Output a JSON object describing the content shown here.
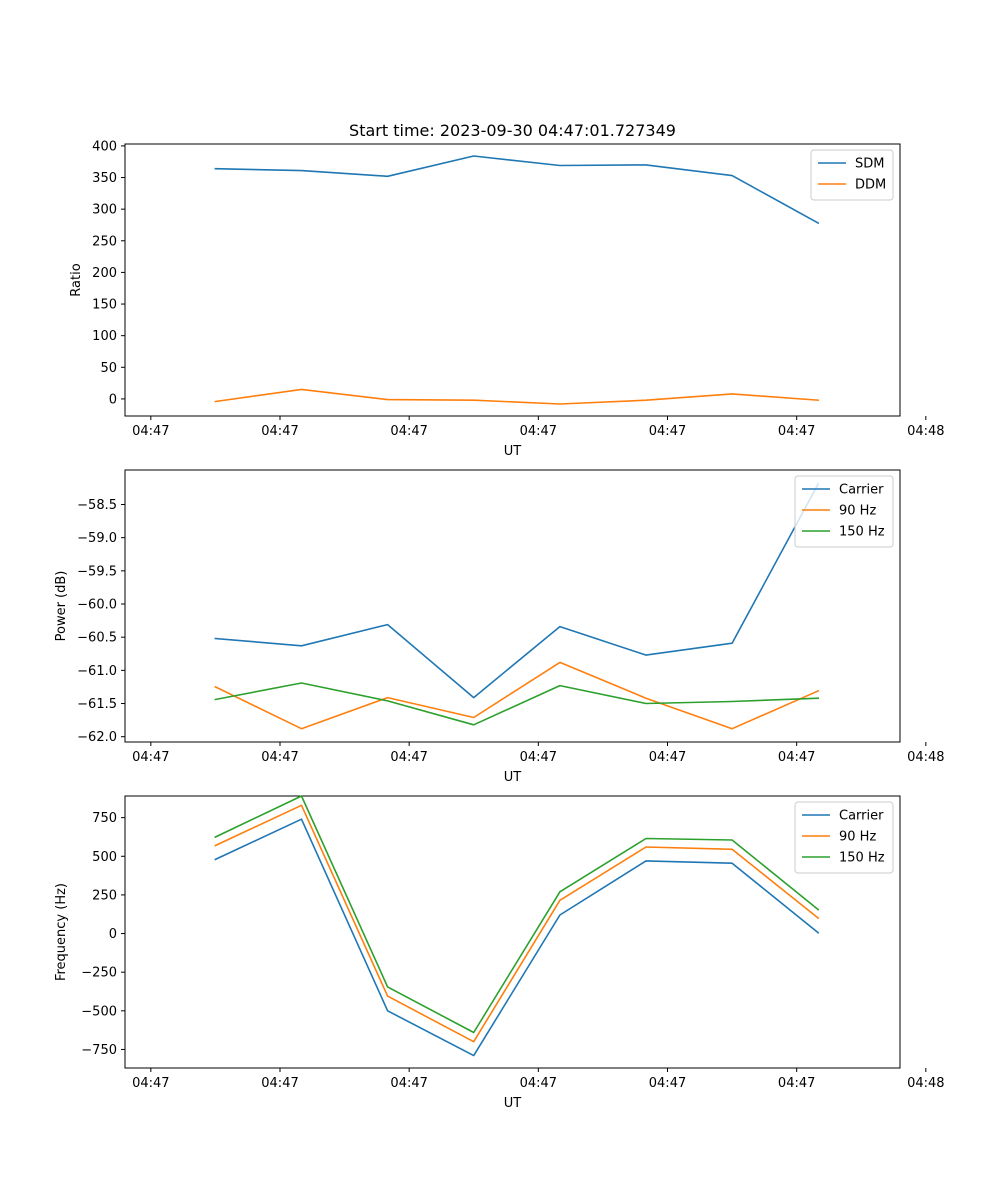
{
  "figure_title": "Start time: 2023-09-30 04:47:01.727349",
  "chart_data": [
    {
      "type": "line",
      "title": "Start time: 2023-09-30 04:47:01.727349",
      "xlabel": "UT",
      "ylabel": "Ratio",
      "xlim": [
        -0.5,
        8.5
      ],
      "ylim": [
        -27,
        403
      ],
      "x_ticks": [
        -0.2,
        1.3,
        2.8,
        4.3,
        5.8,
        7.3,
        8.8
      ],
      "x_tick_labels": [
        "04:47",
        "04:47",
        "04:47",
        "04:47",
        "04:47",
        "04:47",
        "04:48"
      ],
      "y_ticks": [
        0,
        50,
        100,
        150,
        200,
        250,
        300,
        350,
        400
      ],
      "y_tick_labels": [
        "0",
        "50",
        "100",
        "150",
        "200",
        "250",
        "300",
        "350",
        "400"
      ],
      "x": [
        0.55,
        1.55,
        2.55,
        3.55,
        4.55,
        5.55,
        6.55,
        7.55
      ],
      "series": [
        {
          "name": "SDM",
          "color": "#1f77b4",
          "values": [
            364,
            361,
            352,
            384,
            369,
            370,
            353,
            278
          ]
        },
        {
          "name": "DDM",
          "color": "#ff7f0e",
          "values": [
            -4,
            15,
            -1,
            -2,
            -8,
            -2,
            8,
            -2
          ]
        }
      ],
      "legend": "top-right"
    },
    {
      "type": "line",
      "xlabel": "UT",
      "ylabel": "Power (dB)",
      "xlim": [
        -0.5,
        8.5
      ],
      "ylim": [
        -62.08,
        -57.98
      ],
      "x_ticks": [
        -0.2,
        1.3,
        2.8,
        4.3,
        5.8,
        7.3,
        8.8
      ],
      "x_tick_labels": [
        "04:47",
        "04:47",
        "04:47",
        "04:47",
        "04:47",
        "04:47",
        "04:48"
      ],
      "y_ticks": [
        -62.0,
        -61.5,
        -61.0,
        -60.5,
        -60.0,
        -59.5,
        -59.0,
        -58.5
      ],
      "y_tick_labels": [
        "−62.0",
        "−61.5",
        "−61.0",
        "−60.5",
        "−60.0",
        "−59.5",
        "−59.0",
        "−58.5"
      ],
      "x": [
        0.55,
        1.55,
        2.55,
        3.55,
        4.55,
        5.55,
        6.55,
        7.55
      ],
      "series": [
        {
          "name": "Carrier",
          "color": "#1f77b4",
          "values": [
            -60.52,
            -60.63,
            -60.31,
            -61.41,
            -60.34,
            -60.77,
            -60.59,
            -58.19
          ]
        },
        {
          "name": "90 Hz",
          "color": "#ff7f0e",
          "values": [
            -61.25,
            -61.88,
            -61.41,
            -61.71,
            -60.88,
            -61.42,
            -61.88,
            -61.31
          ]
        },
        {
          "name": "150 Hz",
          "color": "#2ca02c",
          "values": [
            -61.44,
            -61.19,
            -61.46,
            -61.82,
            -61.23,
            -61.5,
            -61.47,
            -61.42
          ]
        }
      ],
      "legend": "top-right"
    },
    {
      "type": "line",
      "xlabel": "UT",
      "ylabel": "Frequency (Hz)",
      "xlim": [
        -0.5,
        8.5
      ],
      "ylim": [
        -870,
        890
      ],
      "x_ticks": [
        -0.2,
        1.3,
        2.8,
        4.3,
        5.8,
        7.3,
        8.8
      ],
      "x_tick_labels": [
        "04:47",
        "04:47",
        "04:47",
        "04:47",
        "04:47",
        "04:47",
        "04:48"
      ],
      "y_ticks": [
        -750,
        -500,
        -250,
        0,
        250,
        500,
        750
      ],
      "y_tick_labels": [
        "−750",
        "−500",
        "−250",
        "0",
        "250",
        "500",
        "750"
      ],
      "x": [
        0.55,
        1.55,
        2.55,
        3.55,
        4.55,
        5.55,
        6.55,
        7.55
      ],
      "series": [
        {
          "name": "Carrier",
          "color": "#1f77b4",
          "values": [
            480,
            740,
            -500,
            -790,
            120,
            470,
            455,
            5
          ]
        },
        {
          "name": "90 Hz",
          "color": "#ff7f0e",
          "values": [
            570,
            830,
            -405,
            -700,
            215,
            560,
            545,
            100
          ]
        },
        {
          "name": "150 Hz",
          "color": "#2ca02c",
          "values": [
            625,
            890,
            -345,
            -640,
            270,
            615,
            605,
            155
          ]
        }
      ],
      "legend": "top-right"
    }
  ]
}
